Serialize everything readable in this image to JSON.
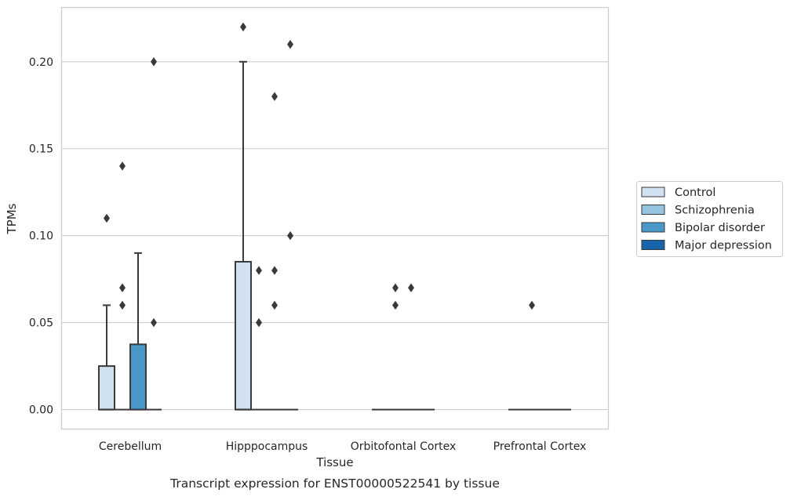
{
  "chart_data": {
    "type": "box",
    "xlabel": "Tissue",
    "ylabel": "TPMs",
    "caption": "Transcript expression for ENST00000522541 by tissue",
    "ylim": [
      -0.011,
      0.231
    ],
    "yticks": [
      0.0,
      0.05,
      0.1,
      0.15,
      0.2
    ],
    "ytick_labels": [
      "0.00",
      "0.05",
      "0.10",
      "0.15",
      "0.20"
    ],
    "grid": "horizontal",
    "legend_position": "right",
    "categories": [
      "Cerebellum",
      "Hipppocampus",
      "Orbitofontal Cortex",
      "Prefrontal Cortex"
    ],
    "series": [
      {
        "name": "Control",
        "color": "#d0e1f2",
        "boxes": [
          {
            "q1": 0.0,
            "median": 0.0,
            "q3": 0.025,
            "whisker_low": 0.0,
            "whisker_high": 0.06,
            "outliers": [
              0.11
            ]
          },
          {
            "q1": 0.0,
            "median": 0.0,
            "q3": 0.085,
            "whisker_low": 0.0,
            "whisker_high": 0.2,
            "outliers": [
              0.22
            ]
          },
          {
            "q1": 0.0,
            "median": 0.0,
            "q3": 0.0,
            "whisker_low": 0.0,
            "whisker_high": 0.0,
            "outliers": []
          },
          {
            "q1": 0.0,
            "median": 0.0,
            "q3": 0.0,
            "whisker_low": 0.0,
            "whisker_high": 0.0,
            "outliers": []
          }
        ]
      },
      {
        "name": "Schizophrenia",
        "color": "#94c4df",
        "boxes": [
          {
            "q1": 0.0,
            "median": 0.0,
            "q3": 0.0,
            "whisker_low": 0.0,
            "whisker_high": 0.0,
            "outliers": [
              0.06,
              0.07,
              0.14
            ]
          },
          {
            "q1": 0.0,
            "median": 0.0,
            "q3": 0.0,
            "whisker_low": 0.0,
            "whisker_high": 0.0,
            "outliers": [
              0.05,
              0.08
            ]
          },
          {
            "q1": 0.0,
            "median": 0.0,
            "q3": 0.0,
            "whisker_low": 0.0,
            "whisker_high": 0.0,
            "outliers": [
              0.06,
              0.07
            ]
          },
          {
            "q1": 0.0,
            "median": 0.0,
            "q3": 0.0,
            "whisker_low": 0.0,
            "whisker_high": 0.0,
            "outliers": [
              0.06
            ]
          }
        ]
      },
      {
        "name": "Bipolar disorder",
        "color": "#4a98c9",
        "boxes": [
          {
            "q1": 0.0,
            "median": 0.0,
            "q3": 0.0375,
            "whisker_low": 0.0,
            "whisker_high": 0.09,
            "outliers": []
          },
          {
            "q1": 0.0,
            "median": 0.0,
            "q3": 0.0,
            "whisker_low": 0.0,
            "whisker_high": 0.0,
            "outliers": [
              0.06,
              0.08,
              0.18
            ]
          },
          {
            "q1": 0.0,
            "median": 0.0,
            "q3": 0.0,
            "whisker_low": 0.0,
            "whisker_high": 0.0,
            "outliers": [
              0.07
            ]
          },
          {
            "q1": 0.0,
            "median": 0.0,
            "q3": 0.0,
            "whisker_low": 0.0,
            "whisker_high": 0.0,
            "outliers": []
          }
        ]
      },
      {
        "name": "Major depression",
        "color": "#1764ab",
        "boxes": [
          {
            "q1": 0.0,
            "median": 0.0,
            "q3": 0.0,
            "whisker_low": 0.0,
            "whisker_high": 0.0,
            "outliers": [
              0.05,
              0.2
            ]
          },
          {
            "q1": 0.0,
            "median": 0.0,
            "q3": 0.0,
            "whisker_low": 0.0,
            "whisker_high": 0.0,
            "outliers": [
              0.1,
              0.21
            ]
          },
          {
            "q1": 0.0,
            "median": 0.0,
            "q3": 0.0,
            "whisker_low": 0.0,
            "whisker_high": 0.0,
            "outliers": []
          },
          {
            "q1": 0.0,
            "median": 0.0,
            "q3": 0.0,
            "whisker_low": 0.0,
            "whisker_high": 0.0,
            "outliers": []
          }
        ]
      }
    ]
  }
}
